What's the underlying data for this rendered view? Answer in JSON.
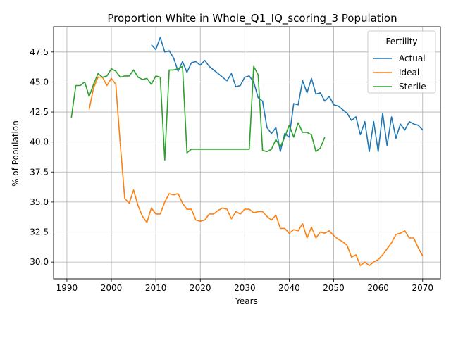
{
  "chart_data": {
    "type": "line",
    "title": "Proportion White in Whole_Q1_IQ_scoring_3 Population",
    "xlabel": "Years",
    "ylabel": "% of Population",
    "xlim": [
      1987,
      2074
    ],
    "ylim": [
      28.6,
      49.6
    ],
    "xticks": [
      "1990",
      "2000",
      "2010",
      "2020",
      "2030",
      "2040",
      "2050",
      "2060",
      "2070"
    ],
    "yticks": [
      "30.0",
      "32.5",
      "35.0",
      "37.5",
      "40.0",
      "42.5",
      "45.0",
      "47.5"
    ],
    "grid": true,
    "legend": {
      "title": "Fertility",
      "position": "top-right"
    },
    "series": [
      {
        "name": "Actual",
        "color": "#1f77b4",
        "x": [
          2009,
          2010,
          2011,
          2012,
          2013,
          2014,
          2015,
          2016,
          2017,
          2018,
          2019,
          2020,
          2021,
          2022,
          2023,
          2024,
          2025,
          2026,
          2027,
          2028,
          2029,
          2030,
          2031,
          2032,
          2033,
          2034,
          2035,
          2036,
          2037,
          2038,
          2039,
          2040,
          2041,
          2042,
          2043,
          2044,
          2045,
          2046,
          2047,
          2048,
          2049,
          2050,
          2051,
          2052,
          2053,
          2054,
          2055,
          2056,
          2057,
          2058,
          2059,
          2060,
          2061,
          2062,
          2063,
          2064,
          2065,
          2066,
          2067,
          2068,
          2069,
          2070
        ],
        "y": [
          48.1,
          47.7,
          48.7,
          47.5,
          47.6,
          47.0,
          45.9,
          46.7,
          45.8,
          46.6,
          46.7,
          46.4,
          46.8,
          46.3,
          46.0,
          45.7,
          45.4,
          45.1,
          45.7,
          44.6,
          44.7,
          45.4,
          45.5,
          45.0,
          43.7,
          43.4,
          41.2,
          40.7,
          41.2,
          39.2,
          40.7,
          40.4,
          43.2,
          43.1,
          45.1,
          44.1,
          45.3,
          44.0,
          44.1,
          43.4,
          43.8,
          43.1,
          43.0,
          42.7,
          42.4,
          41.8,
          42.1,
          40.6,
          41.7,
          39.2,
          41.7,
          39.2,
          42.4,
          39.7,
          42.1,
          40.3,
          41.5,
          41.0,
          41.7,
          41.5,
          41.4,
          41.0
        ]
      },
      {
        "name": "Ideal",
        "color": "#ff7f0e",
        "x": [
          1995,
          1996,
          1997,
          1998,
          1999,
          2000,
          2001,
          2002,
          2003,
          2004,
          2005,
          2006,
          2007,
          2008,
          2009,
          2010,
          2011,
          2012,
          2013,
          2014,
          2015,
          2016,
          2017,
          2018,
          2019,
          2020,
          2021,
          2022,
          2023,
          2024,
          2025,
          2026,
          2027,
          2028,
          2029,
          2030,
          2031,
          2032,
          2033,
          2034,
          2035,
          2036,
          2037,
          2038,
          2039,
          2040,
          2041,
          2042,
          2043,
          2044,
          2045,
          2046,
          2047,
          2048,
          2049,
          2050,
          2051,
          2052,
          2053,
          2054,
          2055,
          2056,
          2057,
          2058,
          2059,
          2060,
          2061,
          2062,
          2063,
          2064,
          2065,
          2066,
          2067,
          2068,
          2069,
          2070
        ],
        "y": [
          42.7,
          44.5,
          45.4,
          45.4,
          44.7,
          45.3,
          44.8,
          39.8,
          35.3,
          34.9,
          36.0,
          34.7,
          33.8,
          33.3,
          34.5,
          34.0,
          34.0,
          35.0,
          35.7,
          35.6,
          35.7,
          34.9,
          34.4,
          34.4,
          33.5,
          33.4,
          33.5,
          34.0,
          34.0,
          34.3,
          34.5,
          34.4,
          33.6,
          34.2,
          34.0,
          34.4,
          34.4,
          34.1,
          34.2,
          34.2,
          33.8,
          33.5,
          33.9,
          32.8,
          32.8,
          32.4,
          32.7,
          32.6,
          33.2,
          32.0,
          32.9,
          32.0,
          32.5,
          32.4,
          32.6,
          32.2,
          31.9,
          31.7,
          31.4,
          30.4,
          30.6,
          29.7,
          30.0,
          29.7,
          30.0,
          30.2,
          30.6,
          31.1,
          31.6,
          32.3,
          32.4,
          32.6,
          32.0,
          32.0,
          31.2,
          30.5
        ]
      },
      {
        "name": "Sterile",
        "color": "#2ca02c",
        "x": [
          1991,
          1992,
          1993,
          1994,
          1995,
          1996,
          1997,
          1998,
          1999,
          2000,
          2001,
          2002,
          2003,
          2004,
          2005,
          2006,
          2007,
          2008,
          2009,
          2010,
          2011,
          2012,
          2013,
          2014,
          2015,
          2016,
          2017,
          2018,
          2019,
          2020,
          2021,
          2022,
          2023,
          2024,
          2025,
          2026,
          2027,
          2028,
          2029,
          2030,
          2031,
          2032,
          2033,
          2034,
          2035,
          2036,
          2037,
          2038,
          2039,
          2040,
          2041,
          2042,
          2043,
          2044,
          2045,
          2046,
          2047,
          2048
        ],
        "y": [
          42.0,
          44.7,
          44.7,
          45.0,
          43.8,
          44.8,
          45.7,
          45.4,
          45.5,
          46.1,
          45.9,
          45.4,
          45.5,
          45.5,
          46.0,
          45.4,
          45.2,
          45.3,
          44.8,
          45.5,
          45.4,
          38.5,
          46.0,
          46.0,
          46.1,
          46.3,
          39.1,
          39.4,
          39.4,
          39.4,
          39.4,
          39.4,
          39.4,
          39.4,
          39.4,
          39.4,
          39.4,
          39.4,
          39.4,
          39.4,
          39.4,
          46.3,
          45.6,
          39.3,
          39.2,
          39.4,
          40.2,
          39.6,
          40.4,
          41.4,
          40.4,
          41.6,
          40.8,
          40.8,
          40.6,
          39.2,
          39.5,
          40.4
        ]
      }
    ]
  }
}
